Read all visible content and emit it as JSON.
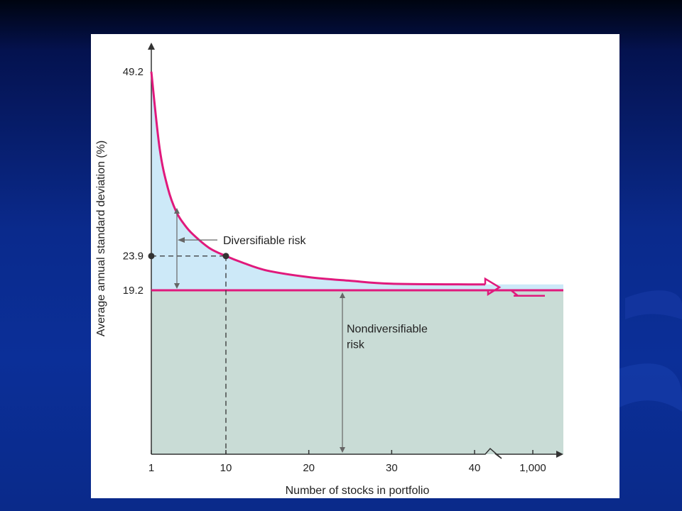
{
  "chart_data": {
    "type": "line",
    "xlabel": "Number of stocks in portfolio",
    "ylabel": "Average annual standard deviation (%)",
    "x_ticks": [
      "1",
      "10",
      "20",
      "30",
      "40",
      "1,000"
    ],
    "y_ticks": [
      "49.2",
      "23.9",
      "19.2"
    ],
    "series": [
      {
        "x": [
          1,
          2,
          3,
          4,
          5,
          6,
          8,
          10,
          12,
          15,
          20,
          25,
          30,
          40,
          1000
        ],
        "y": [
          49.2,
          38.7,
          33.2,
          30.0,
          28.2,
          26.9,
          25.0,
          23.9,
          23.0,
          21.9,
          21.0,
          20.5,
          20.1,
          20.0,
          19.2
        ]
      }
    ],
    "nondiversifiable_level": 19.2,
    "highlight_point": {
      "x": 10,
      "y": 23.9
    },
    "annotations": [
      "Diversifiable risk",
      "Nondiversifiable\nrisk"
    ],
    "colors": {
      "curve": "#e0197c",
      "diversifiable_fill": "#cde9f8",
      "nondiversifiable_fill": "#c9dcd6"
    },
    "grid": false
  }
}
